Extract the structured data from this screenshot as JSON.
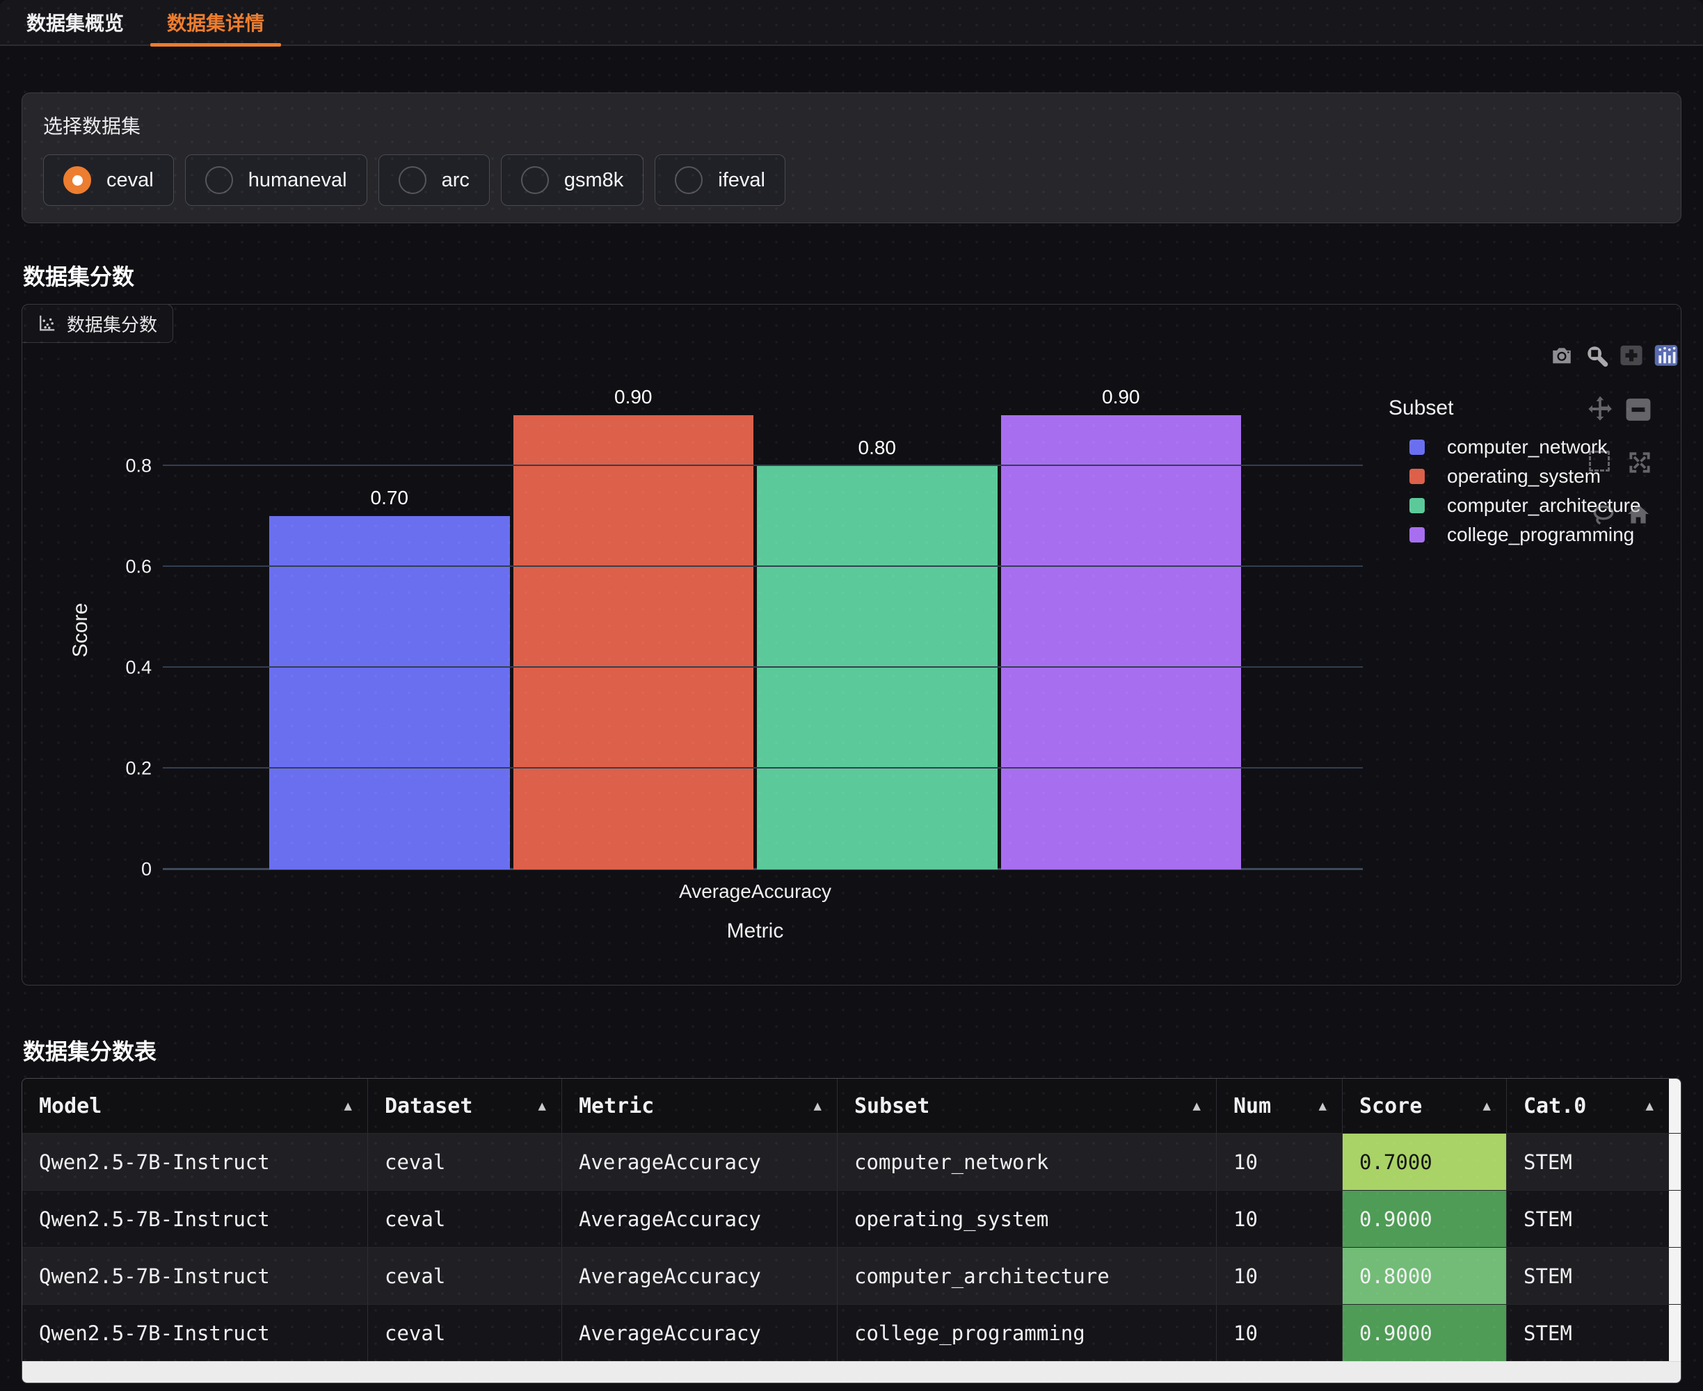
{
  "colors": {
    "accent": "#ED7D2F",
    "scrollbar": "#ECECEC"
  },
  "tabs": [
    {
      "label": "数据集概览",
      "active": false
    },
    {
      "label": "数据集详情",
      "active": true
    }
  ],
  "dataset_picker": {
    "label": "选择数据集",
    "options": [
      {
        "label": "ceval",
        "selected": true
      },
      {
        "label": "humaneval",
        "selected": false
      },
      {
        "label": "arc",
        "selected": false
      },
      {
        "label": "gsm8k",
        "selected": false
      },
      {
        "label": "ifeval",
        "selected": false
      }
    ]
  },
  "score_section": {
    "title": "数据集分数",
    "panel_tab_label": "数据集分数"
  },
  "chart_data": {
    "type": "bar",
    "title": "数据集分数",
    "x": [
      "AverageAccuracy"
    ],
    "xlabel": "Metric",
    "ylabel": "Score",
    "ylim": [
      0,
      0.95
    ],
    "yticks": [
      0,
      0.2,
      0.4,
      0.6,
      0.8
    ],
    "grid": true,
    "legend_title": "Subset",
    "legend_position": "right",
    "series": [
      {
        "name": "computer_network",
        "values": [
          0.7
        ],
        "color": "#6A6FF0"
      },
      {
        "name": "operating_system",
        "values": [
          0.9
        ],
        "color": "#DC604A"
      },
      {
        "name": "computer_architecture",
        "values": [
          0.8
        ],
        "color": "#5CC99A"
      },
      {
        "name": "college_programming",
        "values": [
          0.9
        ],
        "color": "#A76FF0"
      }
    ]
  },
  "modebar": {
    "top_icons": [
      "camera",
      "zoom",
      "zoom-in",
      "plotly-logo"
    ],
    "side_icons": [
      "pan",
      "zoom-out",
      "box-select",
      "autoscale",
      "lasso",
      "reset-home"
    ]
  },
  "table_section": {
    "title": "数据集分数表",
    "columns": [
      "Model",
      "Dataset",
      "Metric",
      "Subset",
      "Num",
      "Score",
      "Cat.0"
    ],
    "rows": [
      {
        "model": "Qwen2.5-7B-Instruct",
        "dataset": "ceval",
        "metric": "AverageAccuracy",
        "subset": "computer_network",
        "num": "10",
        "score": "0.7000",
        "score_bg": "#A9D366",
        "score_text": "#141414",
        "cat0": "STEM"
      },
      {
        "model": "Qwen2.5-7B-Instruct",
        "dataset": "ceval",
        "metric": "AverageAccuracy",
        "subset": "operating_system",
        "num": "10",
        "score": "0.9000",
        "score_bg": "#4E9C55",
        "score_text": "#F2F2F2",
        "cat0": "STEM"
      },
      {
        "model": "Qwen2.5-7B-Instruct",
        "dataset": "ceval",
        "metric": "AverageAccuracy",
        "subset": "computer_architecture",
        "num": "10",
        "score": "0.8000",
        "score_bg": "#72BC77",
        "score_text": "#F2F2F2",
        "cat0": "STEM"
      },
      {
        "model": "Qwen2.5-7B-Instruct",
        "dataset": "ceval",
        "metric": "AverageAccuracy",
        "subset": "college_programming",
        "num": "10",
        "score": "0.9000",
        "score_bg": "#4E9C55",
        "score_text": "#F2F2F2",
        "cat0": "STEM"
      }
    ]
  }
}
